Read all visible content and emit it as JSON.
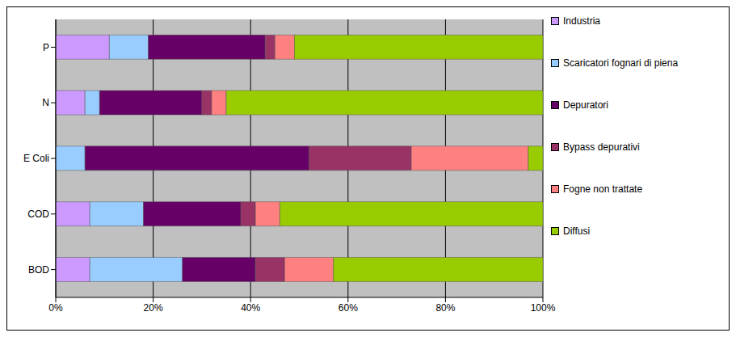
{
  "chart_data": {
    "type": "bar",
    "orientation": "horizontal",
    "stacked": true,
    "grid": true,
    "legend": "right",
    "categories": [
      "P",
      "N",
      "E Coli",
      "COD",
      "BOD"
    ],
    "series": [
      {
        "name": "Industria",
        "color": "#cc99ff",
        "values": [
          11,
          6,
          0,
          7,
          7
        ]
      },
      {
        "name": "Scaricatori fognari di piena",
        "color": "#99ccff",
        "values": [
          8,
          3,
          6,
          11,
          19
        ]
      },
      {
        "name": "Depuratori",
        "color": "#660066",
        "values": [
          24,
          21,
          46,
          20,
          15
        ]
      },
      {
        "name": "Bypass depurativi",
        "color": "#993366",
        "values": [
          2,
          2,
          21,
          3,
          6
        ]
      },
      {
        "name": "Fogne non trattate",
        "color": "#ff8080",
        "values": [
          4,
          3,
          24,
          5,
          10
        ]
      },
      {
        "name": "Diffusi",
        "color": "#99cc00",
        "values": [
          51,
          65,
          3,
          54,
          43
        ]
      }
    ],
    "xlim": [
      0,
      100
    ],
    "xticks": [
      {
        "value": 0,
        "label": "0%"
      },
      {
        "value": 20,
        "label": "20%"
      },
      {
        "value": 40,
        "label": "40%"
      },
      {
        "value": 60,
        "label": "60%"
      },
      {
        "value": 80,
        "label": "80%"
      },
      {
        "value": 100,
        "label": "100%"
      }
    ]
  }
}
